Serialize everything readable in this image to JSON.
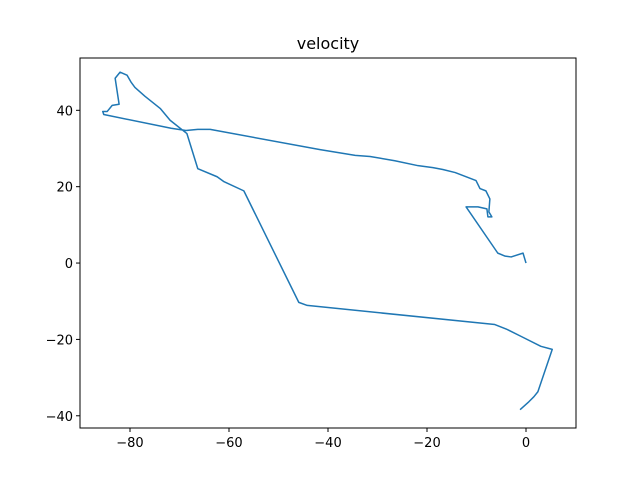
{
  "chart_data": {
    "type": "line",
    "title": "velocity",
    "series": [
      {
        "color": "#1f77b4",
        "x": [
          0,
          -0.6,
          -3.0,
          -4.2,
          -5.7,
          -12.1,
          -9.7,
          -7.9,
          -7.7,
          -6.9,
          -7.5,
          -7.3,
          -8.1,
          -9.3,
          -10.1,
          -14.3,
          -16.8,
          -18.8,
          -21.8,
          -26.5,
          -31.5,
          -34.5,
          -41.6,
          -63.8,
          -66.3,
          -68.7,
          -71.7,
          -85.3,
          -85.5,
          -84.6,
          -83.6,
          -82.2,
          -83.0,
          -82.0,
          -80.6,
          -79.8,
          -79.0,
          -77.0,
          -73.9,
          -71.9,
          -68.5,
          -66.3,
          -62.4,
          -61.0,
          -57.0,
          -45.9,
          -44.2,
          -6.3,
          -3.8,
          -1.0,
          3.0,
          5.3,
          2.4,
          1.6,
          0.6,
          -1.2
        ],
        "values": [
          0,
          2.6,
          1.6,
          1.8,
          2.6,
          14.7,
          14.7,
          14.2,
          12.1,
          12.1,
          13.4,
          16.8,
          18.9,
          19.5,
          21.6,
          23.7,
          24.5,
          25.0,
          25.5,
          26.8,
          27.9,
          28.2,
          29.7,
          35.0,
          35.0,
          34.7,
          35.3,
          38.9,
          39.7,
          39.7,
          41.3,
          41.6,
          48.4,
          50.0,
          49.2,
          47.4,
          46.0,
          43.7,
          40.5,
          37.4,
          33.9,
          24.7,
          22.6,
          21.3,
          18.9,
          -10.3,
          -11.1,
          -16.1,
          -17.4,
          -19.2,
          -21.8,
          -22.6,
          -33.7,
          -35.0,
          -36.3,
          -38.4
        ]
      }
    ],
    "xlim": [
      -90.1,
      10.1
    ],
    "xticks": [
      {
        "value": -80,
        "label": "−80"
      },
      {
        "value": -60,
        "label": "−60"
      },
      {
        "value": -40,
        "label": "−40"
      },
      {
        "value": -20,
        "label": "−20"
      },
      0
    ],
    "ylim": [
      -43.2,
      53.7
    ],
    "yticks": [
      {
        "value": -40,
        "label": "−40"
      },
      {
        "value": -20,
        "label": "−20"
      },
      0,
      20,
      40
    ]
  }
}
